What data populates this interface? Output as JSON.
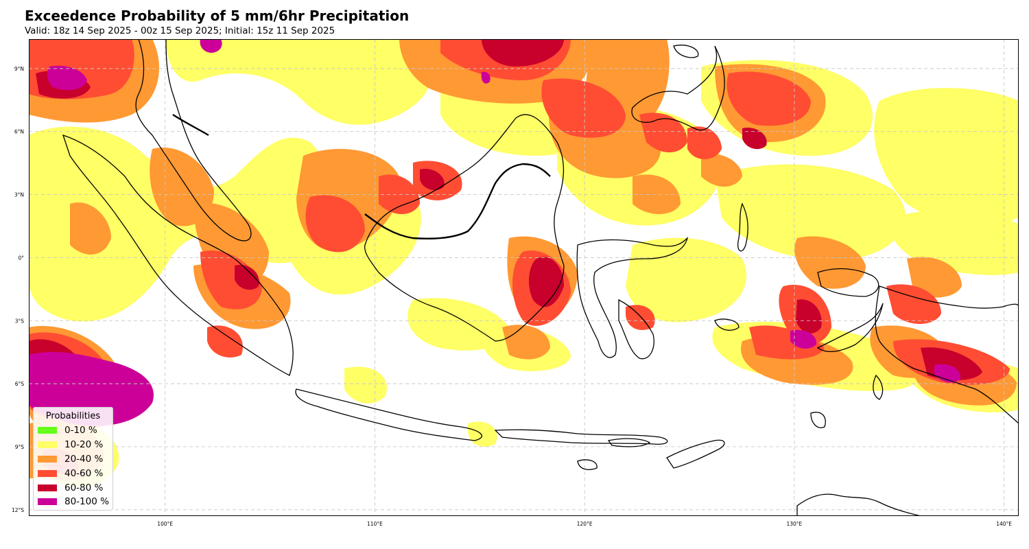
{
  "header": {
    "title": "Exceedence Probability of 5 mm/6hr Precipitation",
    "subtitle": "Valid: 18z 14 Sep 2025 - 00z 15 Sep 2025; Initial: 15z 11 Sep 2025"
  },
  "map": {
    "lon_range": [
      93.5,
      140.7
    ],
    "lat_range": [
      -12.3,
      10.4
    ],
    "x_ticks": [
      {
        "value": 100,
        "label": "100°E"
      },
      {
        "value": 110,
        "label": "110°E"
      },
      {
        "value": 120,
        "label": "120°E"
      },
      {
        "value": 130,
        "label": "130°E"
      },
      {
        "value": 140,
        "label": "140°E"
      }
    ],
    "y_ticks": [
      {
        "value": 9,
        "label": "9°N"
      },
      {
        "value": 6,
        "label": "6°N"
      },
      {
        "value": 3,
        "label": "3°N"
      },
      {
        "value": 0,
        "label": "0°"
      },
      {
        "value": -3,
        "label": "3°S"
      },
      {
        "value": -6,
        "label": "6°S"
      },
      {
        "value": -9,
        "label": "9°S"
      },
      {
        "value": -12,
        "label": "12°S"
      }
    ],
    "gridlines": true
  },
  "legend": {
    "title": "Probabilities",
    "placement": "lower-left",
    "items": [
      {
        "label": "0-10 %",
        "color": "#66ff1a"
      },
      {
        "label": "10-20 %",
        "color": "#ffff66"
      },
      {
        "label": "20-40 %",
        "color": "#ff9933"
      },
      {
        "label": "40-60 %",
        "color": "#ff4d33"
      },
      {
        "label": "60-80 %",
        "color": "#c8002c"
      },
      {
        "label": "80-100 %",
        "color": "#cc0099"
      }
    ]
  },
  "colors": {
    "p10_20": "#ffff66",
    "p20_40": "#ff9933",
    "p40_60": "#ff4d33",
    "p60_80": "#c8002c",
    "p80_100": "#cc0099",
    "coastline": "#000000",
    "grid": "#c8c8c8"
  }
}
